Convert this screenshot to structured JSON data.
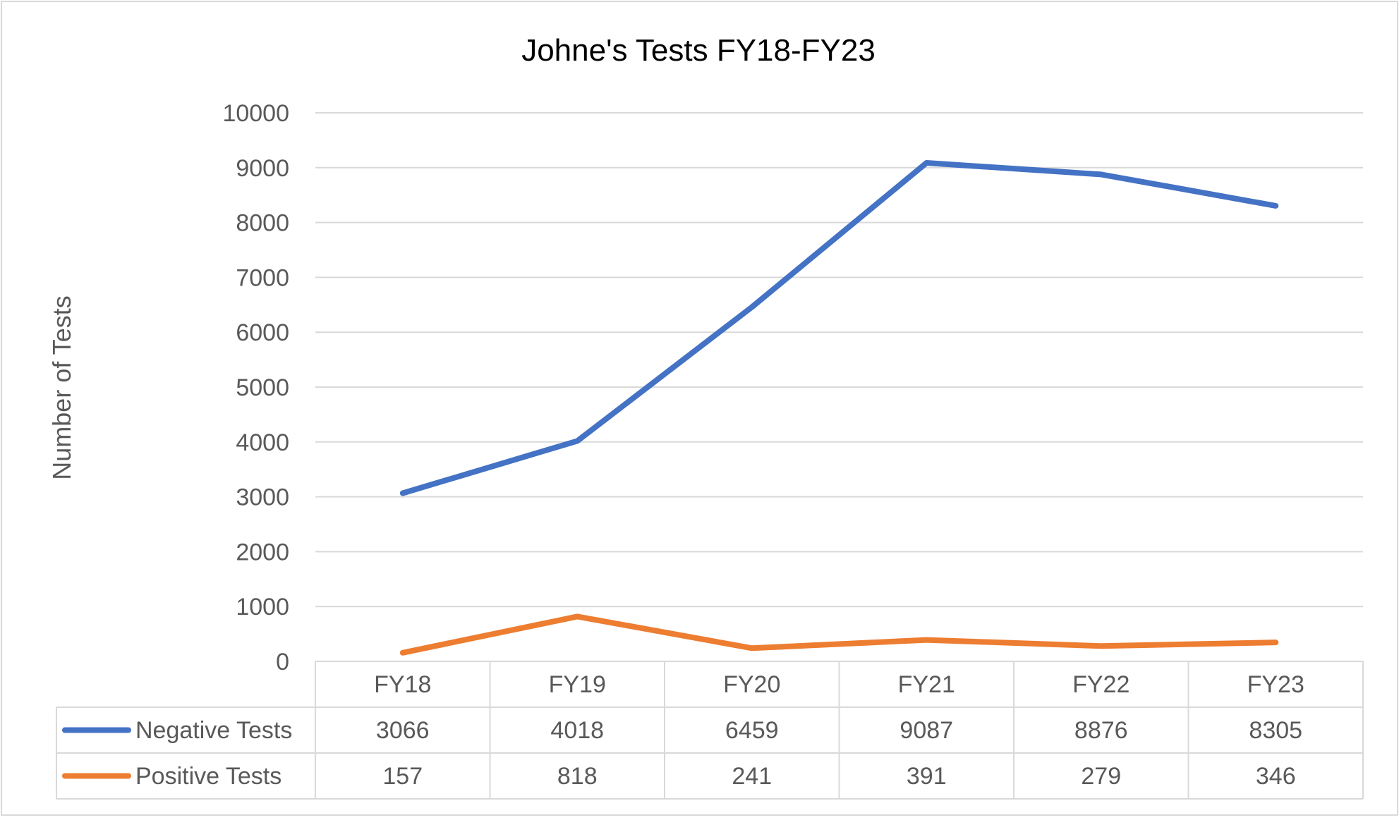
{
  "chart_data": {
    "type": "line",
    "title": "Johne's Tests FY18-FY23",
    "xlabel": "",
    "ylabel": "Number of Tests",
    "categories": [
      "FY18",
      "FY19",
      "FY20",
      "FY21",
      "FY22",
      "FY23"
    ],
    "ylim": [
      0,
      10000
    ],
    "yticks": [
      0,
      1000,
      2000,
      3000,
      4000,
      5000,
      6000,
      7000,
      8000,
      9000,
      10000
    ],
    "grid": true,
    "legend": "data-table",
    "series": [
      {
        "name": "Negative Tests",
        "color": "#4472C4",
        "values": [
          3066,
          4018,
          6459,
          9087,
          8876,
          8305
        ]
      },
      {
        "name": "Positive Tests",
        "color": "#ED7D31",
        "values": [
          157,
          818,
          241,
          391,
          279,
          346
        ]
      }
    ]
  }
}
